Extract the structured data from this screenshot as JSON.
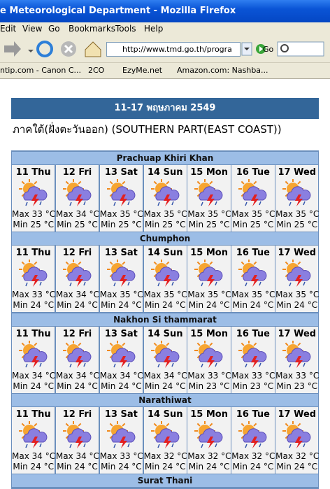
{
  "window": {
    "title": "e Meteorological Department - Mozilla Firefox",
    "menu": [
      "Edit",
      "View",
      "Go",
      "Bookmarks",
      "Tools",
      "Help"
    ],
    "address": "http://www.tmd.go.th/progra",
    "go": "Go",
    "bookmarks": [
      "ntip.com - Canon C...",
      "2CO",
      "EzyMe.net",
      "Amazon.com: Nashba..."
    ]
  },
  "page": {
    "date_range": "11-17 พฤษภาคม 2549",
    "region": "ภาคใต้(ฝั่งตะวันออก)  (SOUTHERN PART(EAST COAST))",
    "forecasts": [
      {
        "name": "Prachuap Khiri Khan",
        "days": [
          {
            "day": "11 Thu",
            "max": "Max 33 °C",
            "min": "Min 25 °C"
          },
          {
            "day": "12 Fri",
            "max": "Max 34 °C",
            "min": "Min 25 °C"
          },
          {
            "day": "13 Sat",
            "max": "Max 35 °C",
            "min": "Min 25 °C"
          },
          {
            "day": "14 Sun",
            "max": "Max 35 °C",
            "min": "Min 25 °C"
          },
          {
            "day": "15 Mon",
            "max": "Max 35 °C",
            "min": "Min 25 °C"
          },
          {
            "day": "16 Tue",
            "max": "Max 35 °C",
            "min": "Min 25 °C"
          },
          {
            "day": "17 Wed",
            "max": "Max 35 °C",
            "min": "Min 25 °C"
          }
        ]
      },
      {
        "name": "Chumphon",
        "days": [
          {
            "day": "11 Thu",
            "max": "Max 33 °C",
            "min": "Min 24 °C"
          },
          {
            "day": "12 Fri",
            "max": "Max 34 °C",
            "min": "Min 24 °C"
          },
          {
            "day": "13 Sat",
            "max": "Max 35 °C",
            "min": "Min 24 °C"
          },
          {
            "day": "14 Sun",
            "max": "Max 35 °C",
            "min": "Min 24 °C"
          },
          {
            "day": "15 Mon",
            "max": "Max 35 °C",
            "min": "Min 24 °C"
          },
          {
            "day": "16 Tue",
            "max": "Max 35 °C",
            "min": "Min 24 °C"
          },
          {
            "day": "17 Wed",
            "max": "Max 35 °C",
            "min": "Min 24 °C"
          }
        ]
      },
      {
        "name": "Nakhon Si thammarat",
        "days": [
          {
            "day": "11 Thu",
            "max": "Max 34 °C",
            "min": "Min 24 °C"
          },
          {
            "day": "12 Fri",
            "max": "Max 34 °C",
            "min": "Min 24 °C"
          },
          {
            "day": "13 Sat",
            "max": "Max 34 °C",
            "min": "Min 24 °C"
          },
          {
            "day": "14 Sun",
            "max": "Max 34 °C",
            "min": "Min 24 °C"
          },
          {
            "day": "15 Mon",
            "max": "Max 33 °C",
            "min": "Min 23 °C"
          },
          {
            "day": "16 Tue",
            "max": "Max 33 °C",
            "min": "Min 23 °C"
          },
          {
            "day": "17 Wed",
            "max": "Max 33 °C",
            "min": "Min 23 °C"
          }
        ]
      },
      {
        "name": "Narathiwat",
        "days": [
          {
            "day": "11 Thu",
            "max": "Max 34 °C",
            "min": "Min 24 °C"
          },
          {
            "day": "12 Fri",
            "max": "Max 34 °C",
            "min": "Min 24 °C"
          },
          {
            "day": "13 Sat",
            "max": "Max 33 °C",
            "min": "Min 24 °C"
          },
          {
            "day": "14 Sun",
            "max": "Max 32 °C",
            "min": "Min 24 °C"
          },
          {
            "day": "15 Mon",
            "max": "Max 32 °C",
            "min": "Min 24 °C"
          },
          {
            "day": "16 Tue",
            "max": "Max 32 °C",
            "min": "Min 24 °C"
          },
          {
            "day": "17 Wed",
            "max": "Max 32 °C",
            "min": "Min 24 °C"
          }
        ]
      },
      {
        "name": "Surat Thani"
      }
    ]
  }
}
